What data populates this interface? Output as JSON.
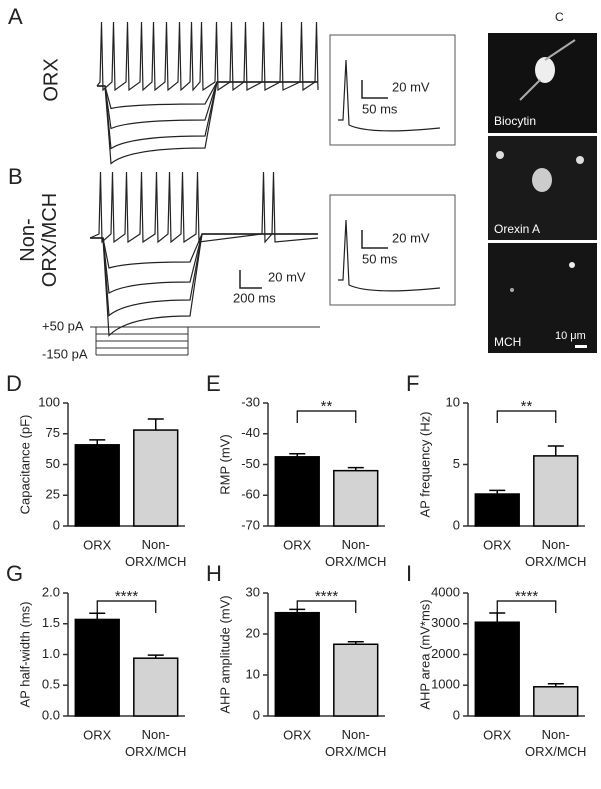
{
  "panels": {
    "a": {
      "label": "A",
      "group": "ORX",
      "scale_v": "20 mV",
      "scale_t": "50 ms"
    },
    "b": {
      "label": "B",
      "group": "Non-ORX/MCH",
      "scale_v": "20 mV",
      "scale_t": "200 ms",
      "inset_v": "20 mV",
      "inset_t": "50 ms",
      "step_top": "+50 pA",
      "step_bottom": "-150 pA"
    },
    "c": {
      "label": "C",
      "images": [
        "Biocytin",
        "Orexin A",
        "MCH"
      ],
      "scale": "10 μm"
    }
  },
  "chart_data": [
    {
      "type": "bar",
      "panel": "D",
      "ylabel": "Capacitance (pF)",
      "categories": [
        "ORX",
        "Non-ORX/MCH"
      ],
      "values": [
        66,
        78
      ],
      "errors": [
        4,
        9
      ],
      "colors": [
        "#000000",
        "#d3d3d3"
      ],
      "ylim": [
        0,
        100
      ],
      "yticks": [
        0,
        25,
        50,
        75,
        100
      ]
    },
    {
      "type": "bar",
      "panel": "E",
      "ylabel": "RMP (mV)",
      "categories": [
        "ORX",
        "Non-ORX/MCH"
      ],
      "values": [
        -47.5,
        -52
      ],
      "errors": [
        1,
        1
      ],
      "colors": [
        "#000000",
        "#d3d3d3"
      ],
      "ylim": [
        -70,
        -30
      ],
      "yticks": [
        -70,
        -60,
        -50,
        -40,
        -30
      ],
      "significance": "**"
    },
    {
      "type": "bar",
      "panel": "F",
      "ylabel": "AP frequency (Hz)",
      "categories": [
        "ORX",
        "Non-ORX/MCH"
      ],
      "values": [
        2.6,
        5.7
      ],
      "errors": [
        0.3,
        0.8
      ],
      "colors": [
        "#000000",
        "#d3d3d3"
      ],
      "ylim": [
        0,
        10
      ],
      "yticks": [
        0,
        5,
        10
      ],
      "significance": "**"
    },
    {
      "type": "bar",
      "panel": "G",
      "ylabel": "AP half-width (ms)",
      "categories": [
        "ORX",
        "Non-ORX/MCH"
      ],
      "values": [
        1.57,
        0.94
      ],
      "errors": [
        0.1,
        0.05
      ],
      "colors": [
        "#000000",
        "#d3d3d3"
      ],
      "ylim": [
        0,
        2
      ],
      "yticks": [
        {
          "value": 0,
          "label": "0.0"
        },
        0.5,
        {
          "value": 1,
          "label": "1.0"
        },
        1.5,
        {
          "value": 2,
          "label": "2.0"
        }
      ],
      "significance": "****"
    },
    {
      "type": "bar",
      "panel": "H",
      "ylabel": "AHP amplitude (mV)",
      "categories": [
        "ORX",
        "Non-ORX/MCH"
      ],
      "values": [
        25.2,
        17.5
      ],
      "errors": [
        0.8,
        0.6
      ],
      "colors": [
        "#000000",
        "#d3d3d3"
      ],
      "ylim": [
        0,
        30
      ],
      "yticks": [
        0,
        10,
        20,
        30
      ],
      "significance": "****"
    },
    {
      "type": "bar",
      "panel": "I",
      "ylabel": "AHP area (mV*ms)",
      "categories": [
        "ORX",
        "Non-ORX/MCH"
      ],
      "values": [
        3050,
        950
      ],
      "errors": [
        300,
        100
      ],
      "colors": [
        "#000000",
        "#d3d3d3"
      ],
      "ylim": [
        0,
        4000
      ],
      "yticks": [
        0,
        1000,
        2000,
        3000,
        4000
      ],
      "significance": "****"
    }
  ]
}
